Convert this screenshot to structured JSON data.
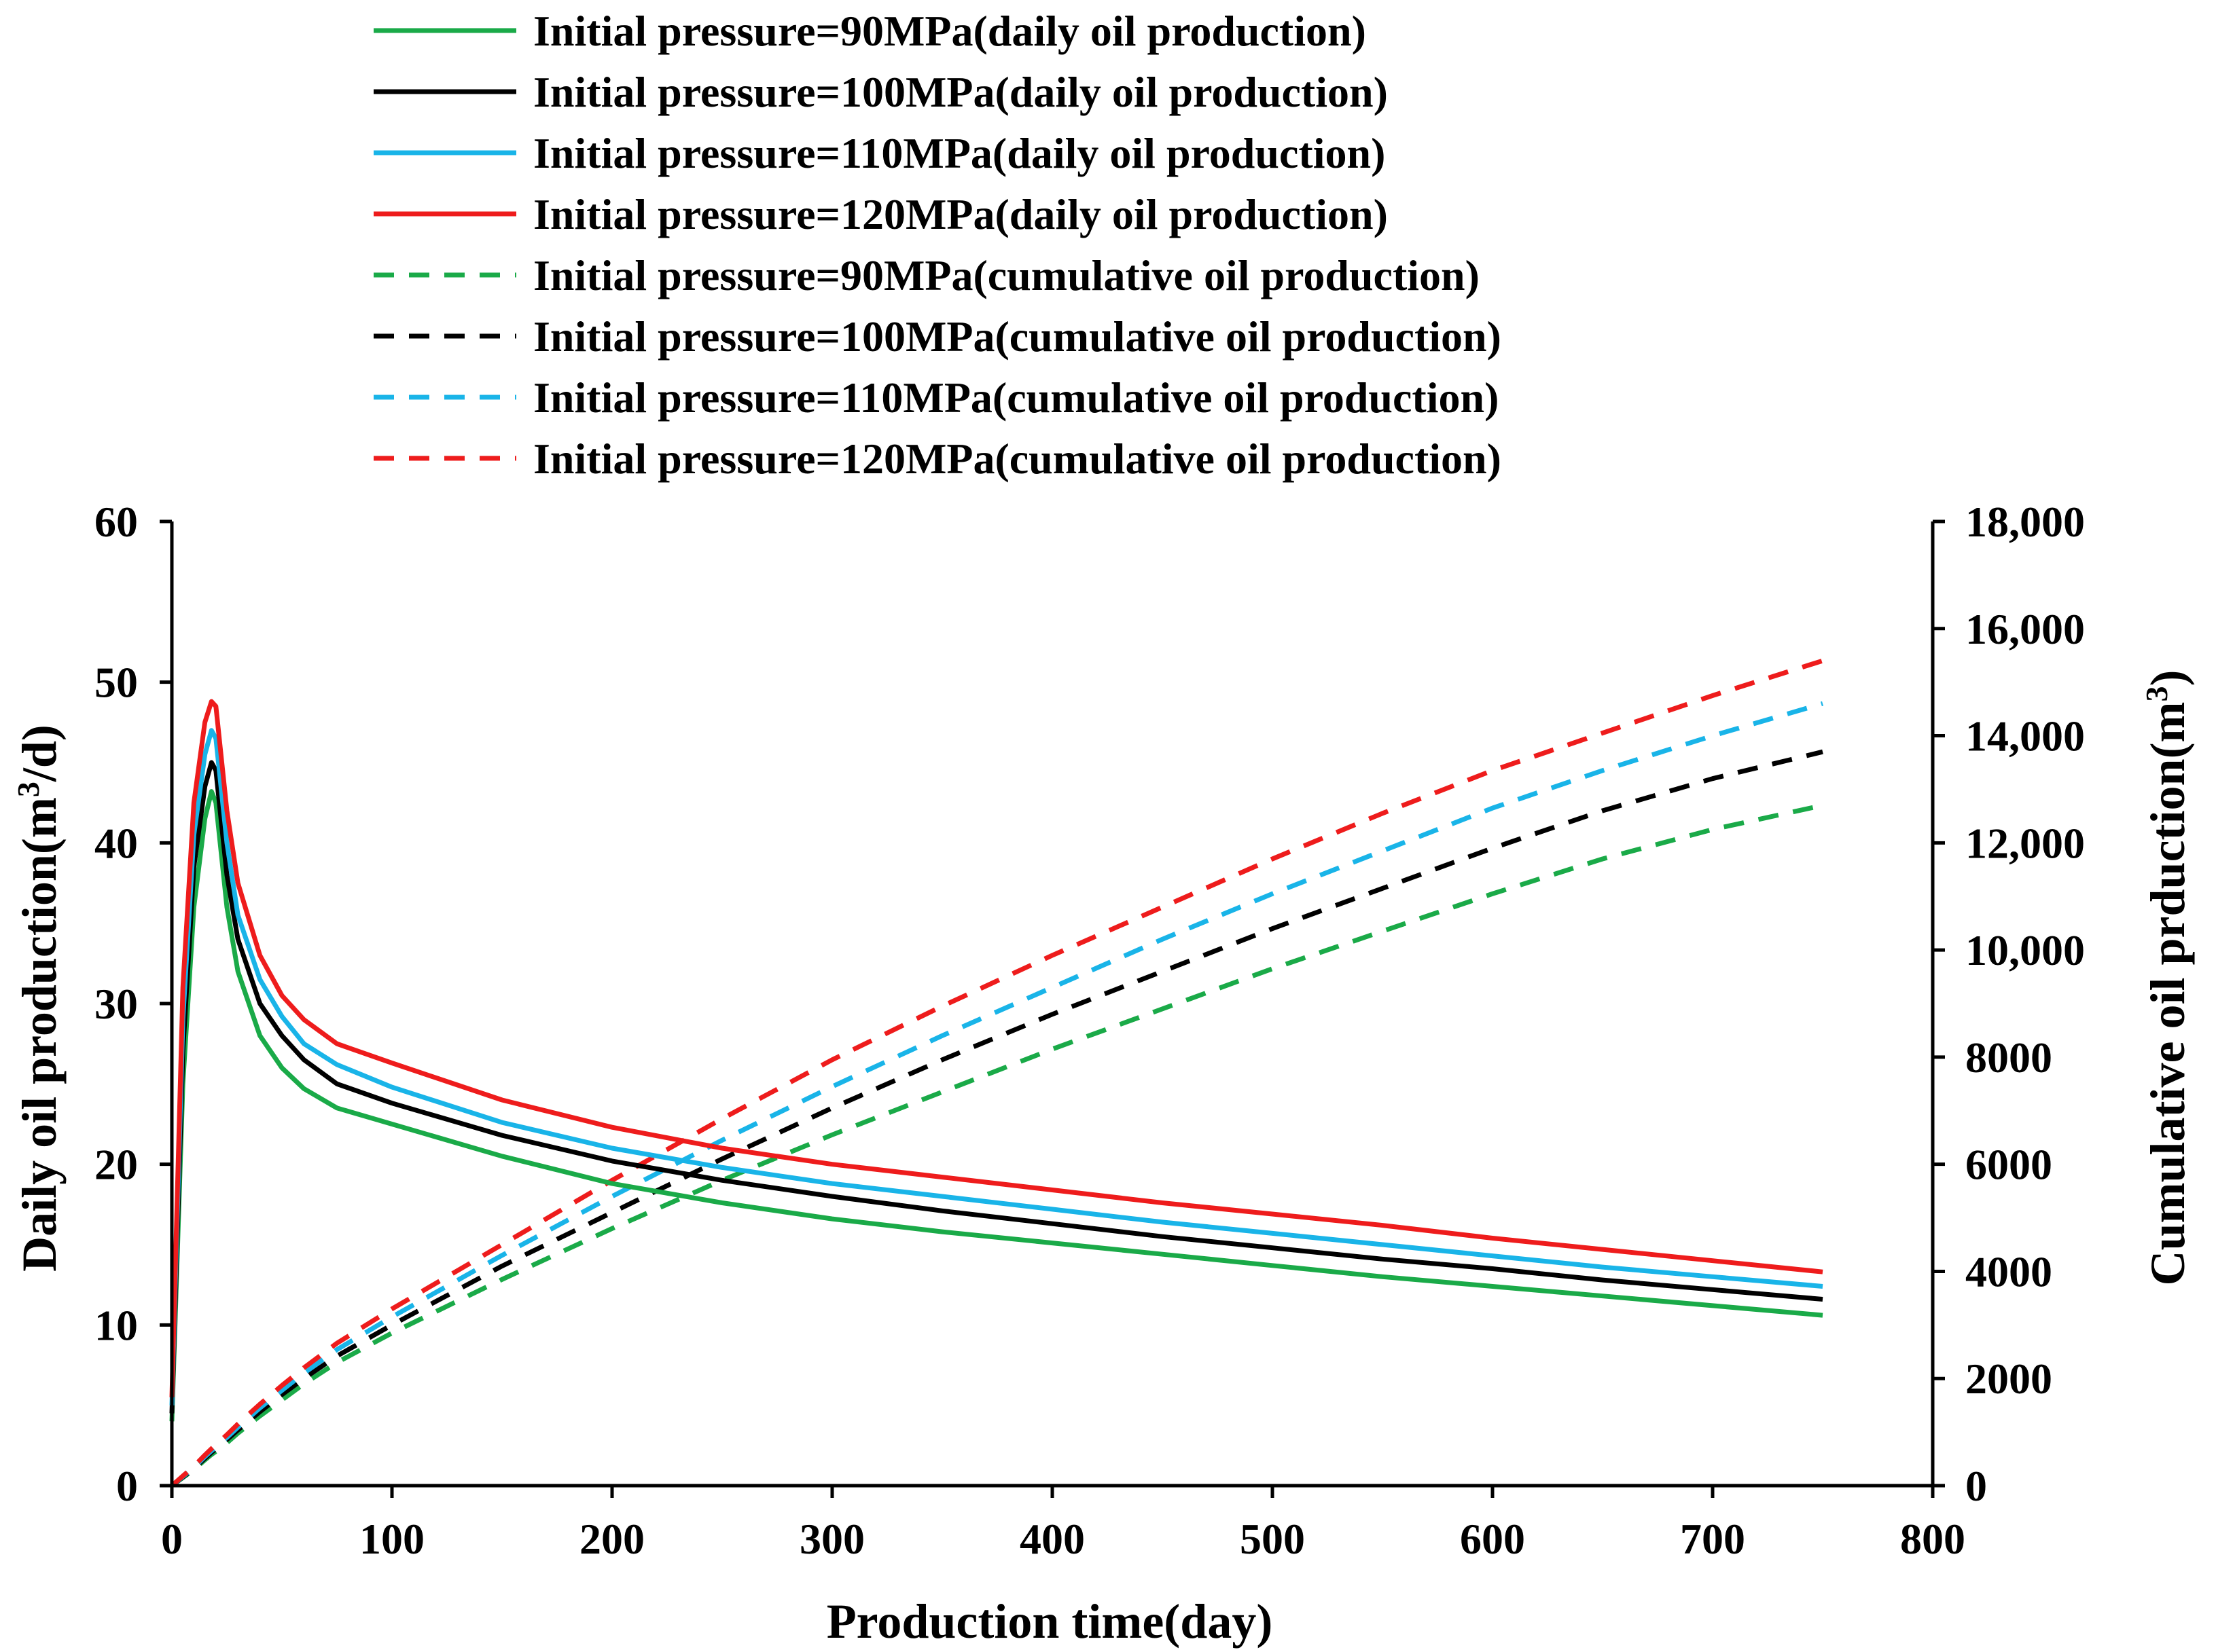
{
  "chart_data": {
    "type": "line",
    "title": "",
    "xlabel": "Production time(day)",
    "ylabel": "Daily oil production(m3/d)",
    "ylabel_parts": {
      "pre": "Daily oil production(m",
      "sup": "3",
      "post": "/d)"
    },
    "y2label": "Cumulative oil prduction(m3)",
    "y2label_parts": {
      "pre": "Cumulative oil prduction(m",
      "sup": "3",
      "post": ")"
    },
    "xlim": [
      0,
      800
    ],
    "ylim": [
      0,
      60
    ],
    "y2lim": [
      0,
      18000
    ],
    "x_ticks": [
      "0",
      "100",
      "200",
      "300",
      "400",
      "500",
      "600",
      "700",
      "800"
    ],
    "x_tick_values": [
      0,
      100,
      200,
      300,
      400,
      500,
      600,
      700,
      800
    ],
    "y_ticks": [
      "0",
      "10",
      "20",
      "30",
      "40",
      "50",
      "60"
    ],
    "y_tick_values": [
      0,
      10,
      20,
      30,
      40,
      50,
      60
    ],
    "y2_ticks": [
      "0",
      "2000",
      "4000",
      "6000",
      "8000",
      "10,000",
      "12,000",
      "14,000",
      "16,000",
      "18,000"
    ],
    "y2_tick_values": [
      0,
      2000,
      4000,
      6000,
      8000,
      10000,
      12000,
      14000,
      16000,
      18000
    ],
    "grid": false,
    "legend_position": "top",
    "x": [
      0,
      5,
      10,
      15,
      18,
      20,
      25,
      30,
      40,
      50,
      60,
      75,
      100,
      150,
      200,
      250,
      300,
      350,
      400,
      450,
      500,
      550,
      600,
      650,
      700,
      750
    ],
    "series": [
      {
        "name": "Initial pressure=90MPa(daily oil production)",
        "axis": "left",
        "style": "solid",
        "color": "#1aaa48",
        "values": [
          4.0,
          25.0,
          36.0,
          41.5,
          43.2,
          42.5,
          36.0,
          32.0,
          28.0,
          26.0,
          24.7,
          23.5,
          22.5,
          20.5,
          18.8,
          17.6,
          16.6,
          15.8,
          15.1,
          14.4,
          13.7,
          13.0,
          12.4,
          11.8,
          11.2,
          10.6
        ]
      },
      {
        "name": "Initial pressure=100MPa(daily oil production)",
        "axis": "left",
        "style": "solid",
        "color": "#000000",
        "values": [
          4.5,
          27.0,
          38.5,
          43.5,
          45.0,
          44.5,
          38.0,
          34.0,
          30.0,
          28.0,
          26.5,
          25.0,
          23.8,
          21.8,
          20.2,
          19.0,
          18.0,
          17.1,
          16.3,
          15.5,
          14.8,
          14.1,
          13.5,
          12.8,
          12.2,
          11.6
        ]
      },
      {
        "name": "Initial pressure=110MPa(daily oil production)",
        "axis": "left",
        "style": "solid",
        "color": "#19b4e8",
        "values": [
          5.0,
          29.0,
          40.5,
          45.5,
          47.0,
          46.5,
          40.0,
          35.5,
          31.5,
          29.2,
          27.5,
          26.2,
          24.8,
          22.6,
          21.0,
          19.8,
          18.8,
          18.0,
          17.2,
          16.4,
          15.7,
          15.0,
          14.3,
          13.6,
          13.0,
          12.4
        ]
      },
      {
        "name": "Initial pressure=120MPa(daily oil production)",
        "axis": "left",
        "style": "solid",
        "color": "#ee1c1c",
        "values": [
          5.5,
          31.0,
          42.5,
          47.5,
          48.8,
          48.5,
          42.0,
          37.5,
          33.0,
          30.5,
          29.0,
          27.5,
          26.3,
          24.0,
          22.3,
          21.0,
          20.0,
          19.2,
          18.4,
          17.6,
          16.9,
          16.2,
          15.4,
          14.7,
          14.0,
          13.3
        ]
      },
      {
        "name": "Initial pressure=90MPa(cumulative oil production)",
        "axis": "right",
        "style": "dashed",
        "color": "#1aaa48",
        "values": [
          0,
          150,
          300,
          480,
          580,
          640,
          800,
          980,
          1300,
          1600,
          1900,
          2300,
          2850,
          3850,
          4800,
          5700,
          6550,
          7350,
          8150,
          8900,
          9650,
          10350,
          11050,
          11700,
          12250,
          12700
        ]
      },
      {
        "name": "Initial pressure=100MPa(cumulative oil production)",
        "axis": "right",
        "style": "dashed",
        "color": "#000000",
        "values": [
          0,
          160,
          320,
          510,
          620,
          690,
          860,
          1040,
          1380,
          1700,
          2000,
          2420,
          3000,
          4100,
          5100,
          6100,
          7050,
          7950,
          8800,
          9600,
          10400,
          11150,
          11900,
          12600,
          13200,
          13700
        ]
      },
      {
        "name": "Initial pressure=110MPa(cumulative oil production)",
        "axis": "right",
        "style": "dashed",
        "color": "#19b4e8",
        "values": [
          0,
          170,
          340,
          540,
          650,
          720,
          900,
          1090,
          1450,
          1780,
          2100,
          2540,
          3150,
          4300,
          5400,
          6450,
          7450,
          8400,
          9300,
          10200,
          11050,
          11850,
          12650,
          13350,
          14000,
          14600
        ]
      },
      {
        "name": "Initial pressure=120MPa(cumulative oil production)",
        "axis": "right",
        "style": "dashed",
        "color": "#ee1c1c",
        "values": [
          0,
          180,
          360,
          570,
          690,
          760,
          950,
          1150,
          1520,
          1870,
          2200,
          2660,
          3300,
          4500,
          5700,
          6850,
          7950,
          8950,
          9900,
          10800,
          11700,
          12550,
          13350,
          14050,
          14750,
          15400
        ]
      }
    ]
  }
}
